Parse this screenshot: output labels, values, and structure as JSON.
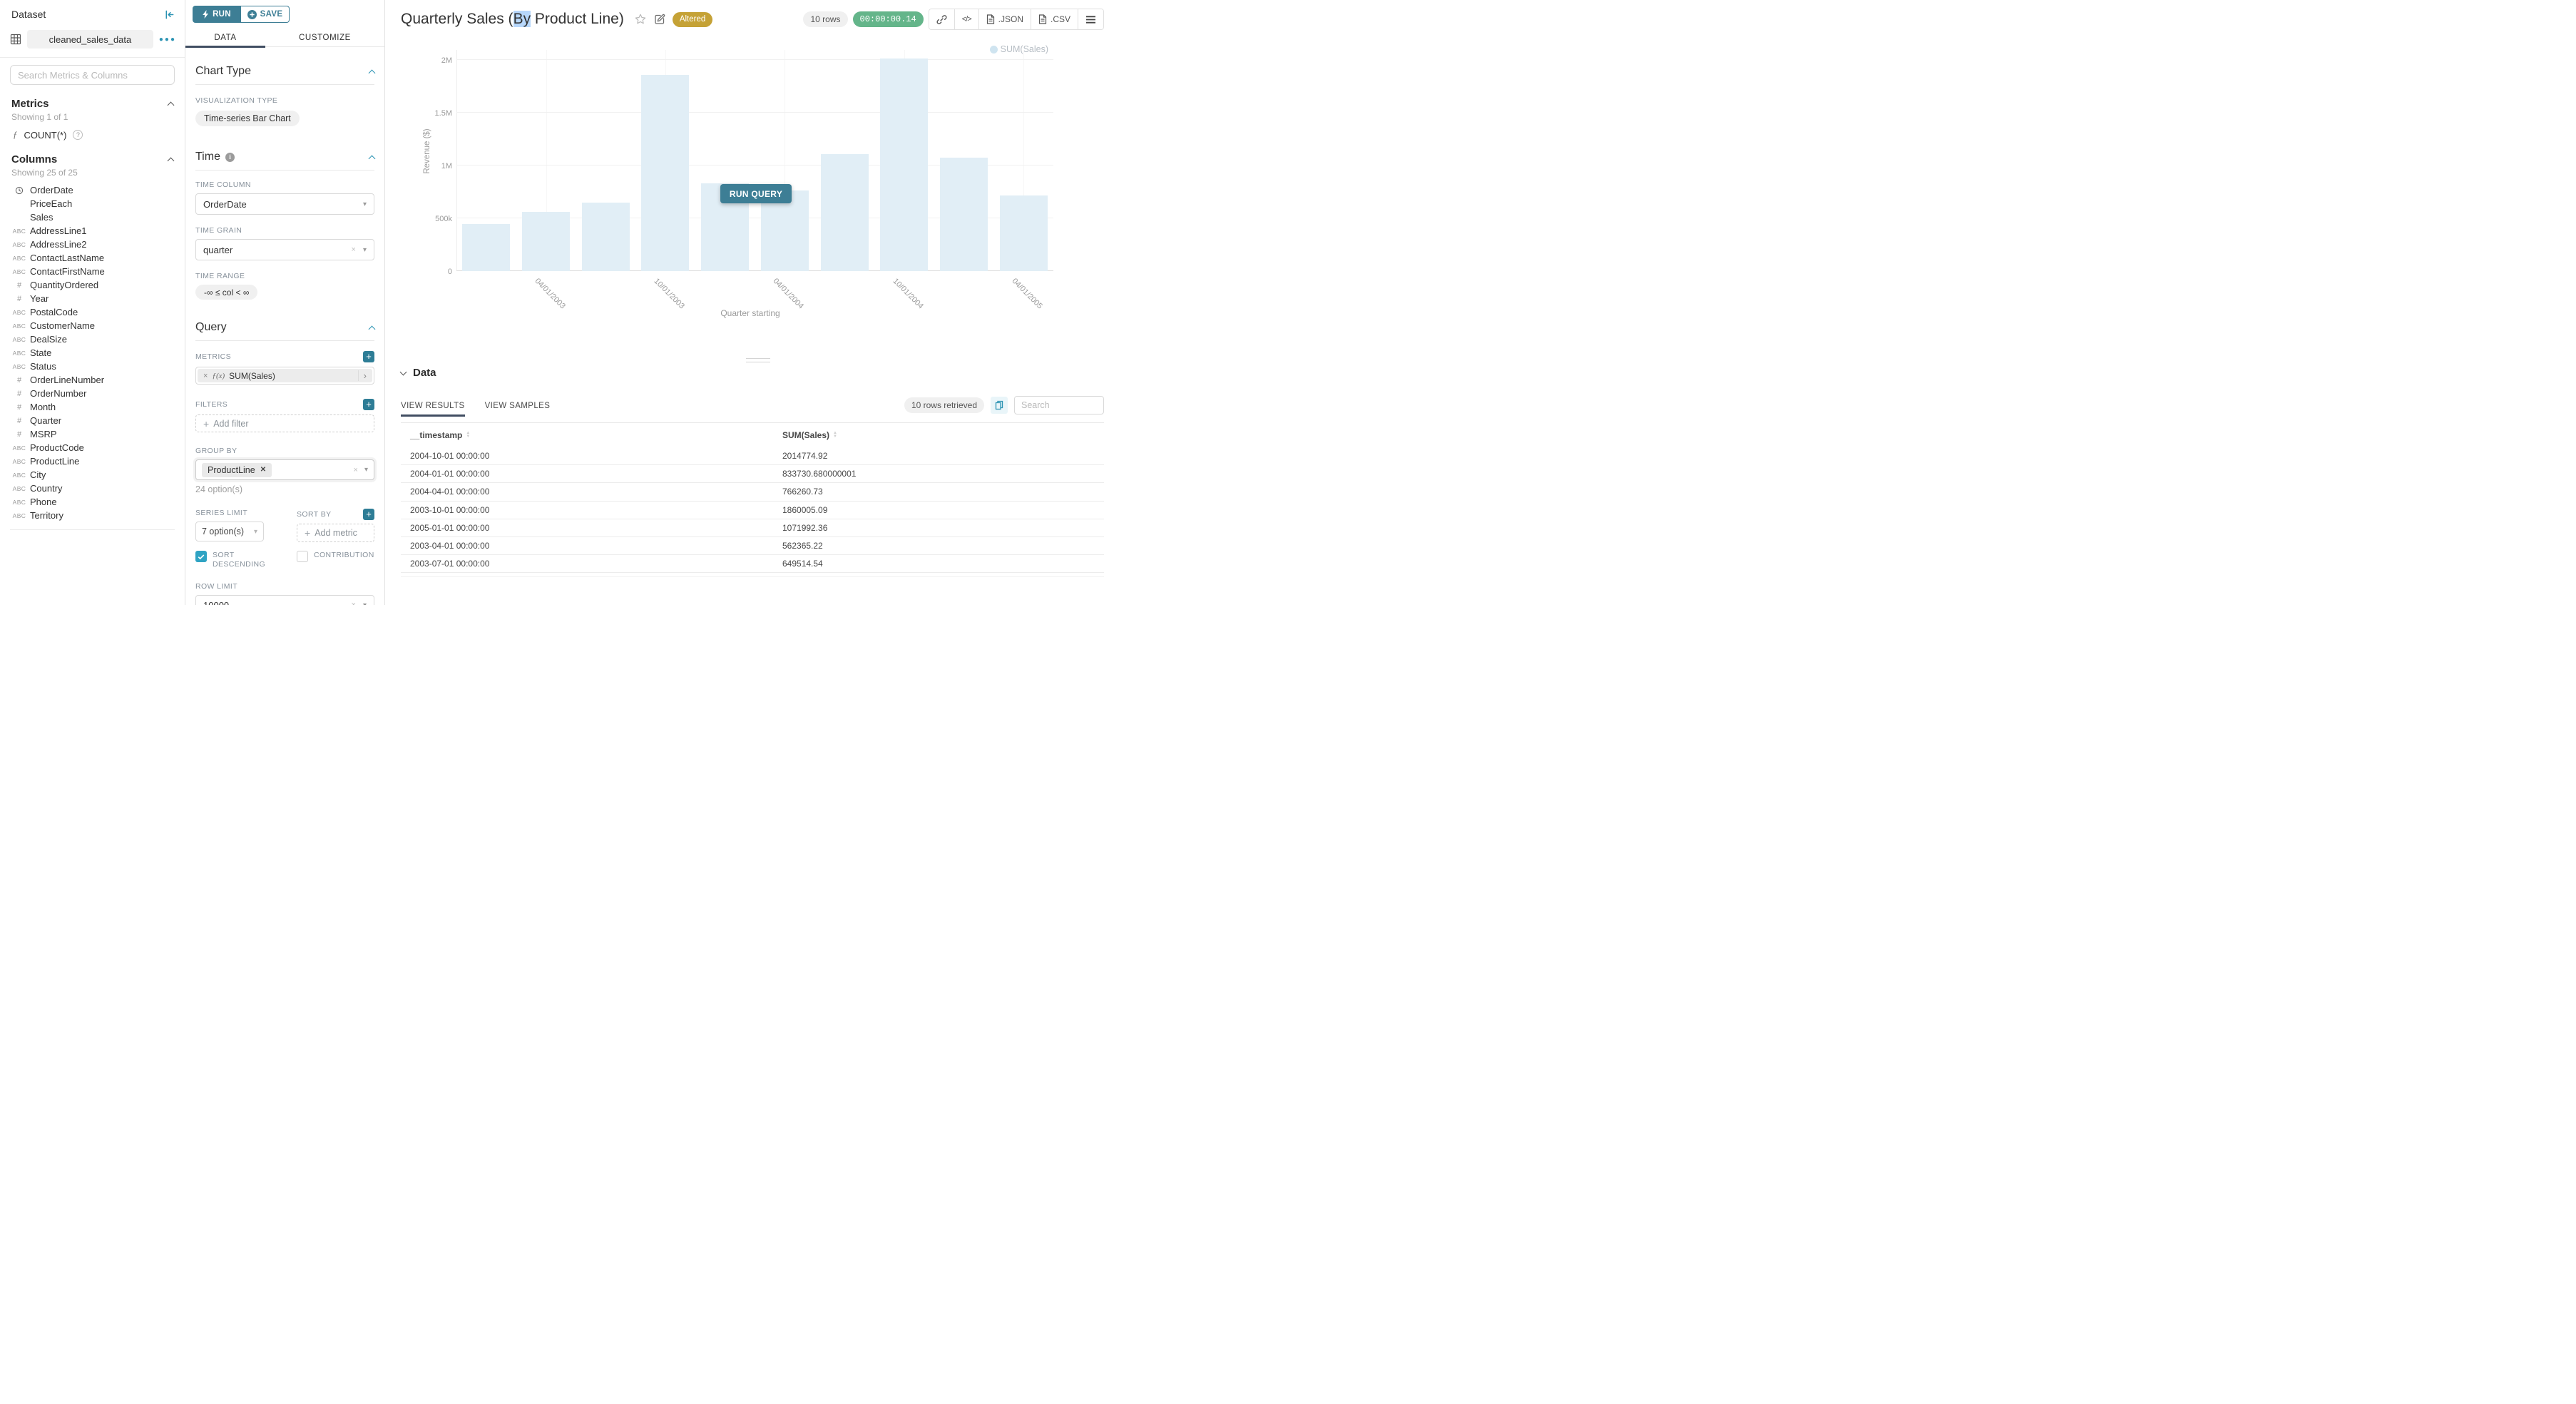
{
  "colors": {
    "primary_teal": "#3d7e95",
    "icon_teal": "#2b93b3",
    "tab_underline": "#414e62",
    "altered_badge": "#c5a236",
    "timer_green": "#64b58a",
    "bar_fill": "#e1eef6",
    "selection_highlight": "#b7d7fb"
  },
  "sidebar": {
    "title": "Dataset",
    "dataset_name": "cleaned_sales_data",
    "search_placeholder": "Search Metrics & Columns",
    "metrics": {
      "heading": "Metrics",
      "showing": "Showing 1 of 1",
      "items": [
        {
          "icon": "function-icon",
          "label": "COUNT(*)"
        }
      ]
    },
    "columns": {
      "heading": "Columns",
      "showing": "Showing 25 of 25",
      "items": [
        {
          "icon": "clock",
          "label": "OrderDate"
        },
        {
          "icon": "none",
          "label": "PriceEach"
        },
        {
          "icon": "none",
          "label": "Sales"
        },
        {
          "icon": "abc",
          "label": "AddressLine1"
        },
        {
          "icon": "abc",
          "label": "AddressLine2"
        },
        {
          "icon": "abc",
          "label": "ContactLastName"
        },
        {
          "icon": "abc",
          "label": "ContactFirstName"
        },
        {
          "icon": "num",
          "label": "QuantityOrdered"
        },
        {
          "icon": "num",
          "label": "Year"
        },
        {
          "icon": "abc",
          "label": "PostalCode"
        },
        {
          "icon": "abc",
          "label": "CustomerName"
        },
        {
          "icon": "abc",
          "label": "DealSize"
        },
        {
          "icon": "abc",
          "label": "State"
        },
        {
          "icon": "abc",
          "label": "Status"
        },
        {
          "icon": "num",
          "label": "OrderLineNumber"
        },
        {
          "icon": "num",
          "label": "OrderNumber"
        },
        {
          "icon": "num",
          "label": "Month"
        },
        {
          "icon": "num",
          "label": "Quarter"
        },
        {
          "icon": "num",
          "label": "MSRP"
        },
        {
          "icon": "abc",
          "label": "ProductCode"
        },
        {
          "icon": "abc",
          "label": "ProductLine"
        },
        {
          "icon": "abc",
          "label": "City"
        },
        {
          "icon": "abc",
          "label": "Country"
        },
        {
          "icon": "abc",
          "label": "Phone"
        },
        {
          "icon": "abc",
          "label": "Territory"
        }
      ]
    }
  },
  "control_panel": {
    "run_label": "RUN",
    "save_label": "SAVE",
    "tabs": {
      "data": "DATA",
      "customize": "CUSTOMIZE"
    },
    "chart_type": {
      "heading": "Chart Type",
      "viz_type_label": "VISUALIZATION TYPE",
      "viz_type_value": "Time-series Bar Chart"
    },
    "time": {
      "heading": "Time",
      "time_column_label": "TIME COLUMN",
      "time_column_value": "OrderDate",
      "time_grain_label": "TIME GRAIN",
      "time_grain_value": "quarter",
      "time_range_label": "TIME RANGE",
      "time_range_value": "-∞ ≤ col < ∞"
    },
    "query": {
      "heading": "Query",
      "metrics_label": "METRICS",
      "metric_prefix": "ƒ(x)",
      "metric_value": "SUM(Sales)",
      "filters_label": "FILTERS",
      "add_filter_label": "Add filter",
      "group_by_label": "GROUP BY",
      "group_by_value": "ProductLine",
      "group_by_options_note": "24 option(s)",
      "series_limit_label": "SERIES LIMIT",
      "series_limit_value": "7 option(s)",
      "sort_by_label": "SORT BY",
      "add_metric_label": "Add metric",
      "sort_descending_label": "SORT DESCENDING",
      "contribution_label": "CONTRIBUTION",
      "row_limit_label": "ROW LIMIT",
      "row_limit_value": "10000"
    }
  },
  "header": {
    "title_before": "Quarterly Sales (",
    "title_highlight": "By",
    "title_after": " Product Line)",
    "altered_badge": "Altered",
    "rows_pill": "10 rows",
    "timer": "00:00:00.14",
    "export_json_label": ".JSON",
    "export_csv_label": ".CSV"
  },
  "icons": {
    "code": "</>"
  },
  "chart": {
    "run_query_label": "RUN QUERY"
  },
  "chart_data": {
    "type": "bar",
    "title": "Quarterly Sales (By Product Line)",
    "xlabel": "Quarter starting",
    "ylabel": "Revenue ($)",
    "legend": [
      "SUM(Sales)"
    ],
    "legend_position": "top-right",
    "grid": true,
    "ylim": [
      0,
      2050000
    ],
    "ytick_values": [
      0,
      500000,
      1000000,
      1500000,
      2000000
    ],
    "ytick_labels": [
      "0",
      "500k",
      "1M",
      "1.5M",
      "2M"
    ],
    "x": [
      "2003-01-01",
      "2003-04-01",
      "2003-07-01",
      "2003-10-01",
      "2004-01-01",
      "2004-04-01",
      "2004-07-01",
      "2004-10-01",
      "2005-01-01",
      "2005-04-01"
    ],
    "xtick_labels": [
      "04/01/2003",
      "10/01/2003",
      "04/01/2004",
      "10/01/2004",
      "04/01/2005"
    ],
    "xtick_positions": [
      1,
      3,
      5,
      7,
      9
    ],
    "series": [
      {
        "name": "SUM(Sales)",
        "values": [
          445000,
          562365.22,
          649514.54,
          1860005.09,
          833730.68,
          766260.73,
          1109000,
          2014774.92,
          1071992.36,
          719000
        ]
      }
    ],
    "bar_color": "#e1eef6"
  },
  "data_panel": {
    "heading": "Data",
    "tabs": {
      "results": "VIEW RESULTS",
      "samples": "VIEW SAMPLES"
    },
    "rows_retrieved": "10 rows retrieved",
    "search_placeholder": "Search",
    "table": {
      "headers": [
        "__timestamp",
        "SUM(Sales)"
      ],
      "rows": [
        [
          "2004-10-01 00:00:00",
          "2014774.92"
        ],
        [
          "2004-01-01 00:00:00",
          "833730.680000001"
        ],
        [
          "2004-04-01 00:00:00",
          "766260.73"
        ],
        [
          "2003-10-01 00:00:00",
          "1860005.09"
        ],
        [
          "2005-01-01 00:00:00",
          "1071992.36"
        ],
        [
          "2003-04-01 00:00:00",
          "562365.22"
        ],
        [
          "2003-07-01 00:00:00",
          "649514.54"
        ]
      ]
    }
  }
}
